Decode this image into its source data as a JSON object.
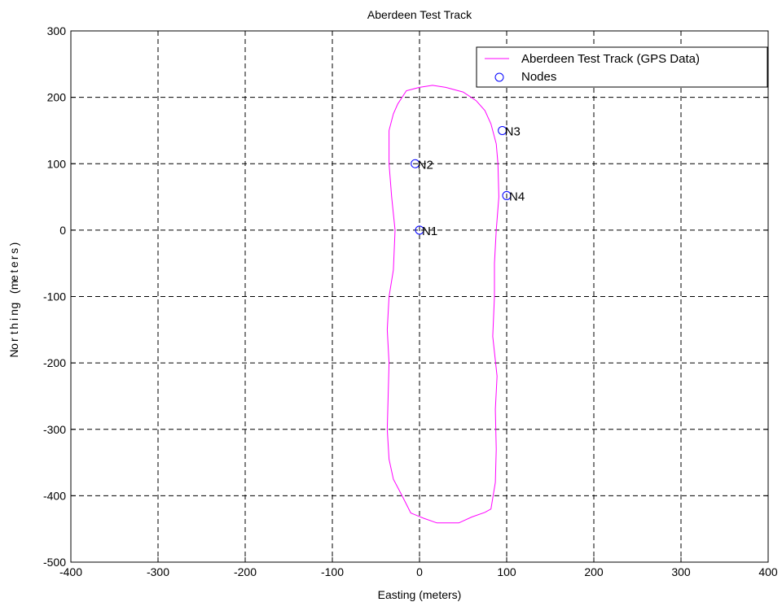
{
  "chart_data": {
    "type": "scatter",
    "title": "Aberdeen Test Track",
    "xlabel": "Easting (meters)",
    "ylabel": "Northing (meters)",
    "xlim": [
      -400,
      400
    ],
    "ylim": [
      -500,
      300
    ],
    "xticks": [
      -400,
      -300,
      -200,
      -100,
      0,
      100,
      200,
      300,
      400
    ],
    "yticks": [
      -500,
      -400,
      -300,
      -200,
      -100,
      0,
      100,
      200,
      300
    ],
    "grid": true,
    "legend_position": "top-right",
    "legend": [
      {
        "label": "Aberdeen Test Track (GPS Data)",
        "marker": "line",
        "color": "#ff00ff"
      },
      {
        "label": "Nodes",
        "marker": "circle",
        "color": "#0000ff"
      }
    ],
    "series": [
      {
        "name": "Aberdeen Test Track (GPS Data)",
        "type": "line",
        "color": "#ff00ff",
        "points": [
          [
            -35,
            150
          ],
          [
            -30,
            175
          ],
          [
            -25,
            190
          ],
          [
            -15,
            210
          ],
          [
            0,
            215
          ],
          [
            15,
            218
          ],
          [
            30,
            215
          ],
          [
            50,
            208
          ],
          [
            65,
            195
          ],
          [
            75,
            180
          ],
          [
            82,
            160
          ],
          [
            88,
            130
          ],
          [
            90,
            100
          ],
          [
            91,
            50
          ],
          [
            88,
            0
          ],
          [
            86,
            -50
          ],
          [
            86,
            -100
          ],
          [
            84,
            -160
          ],
          [
            89,
            -220
          ],
          [
            87,
            -270
          ],
          [
            88,
            -330
          ],
          [
            87,
            -380
          ],
          [
            82,
            -420
          ],
          [
            75,
            -425
          ],
          [
            60,
            -432
          ],
          [
            45,
            -441
          ],
          [
            20,
            -441
          ],
          [
            5,
            -434
          ],
          [
            -10,
            -426
          ],
          [
            -20,
            -400
          ],
          [
            -30,
            -375
          ],
          [
            -35,
            -345
          ],
          [
            -37,
            -300
          ],
          [
            -36,
            -250
          ],
          [
            -35,
            -200
          ],
          [
            -37,
            -150
          ],
          [
            -35,
            -100
          ],
          [
            -30,
            -60
          ],
          [
            -28,
            0
          ],
          [
            -32,
            50
          ],
          [
            -35,
            100
          ],
          [
            -35,
            150
          ]
        ]
      },
      {
        "name": "Nodes",
        "type": "scatter",
        "color": "#0000ff",
        "points": [
          {
            "label": "N1",
            "x": 0,
            "y": 0
          },
          {
            "label": "N2",
            "x": -5,
            "y": 100
          },
          {
            "label": "N3",
            "x": 95,
            "y": 150
          },
          {
            "label": "N4",
            "x": 100,
            "y": 52
          }
        ]
      }
    ]
  }
}
